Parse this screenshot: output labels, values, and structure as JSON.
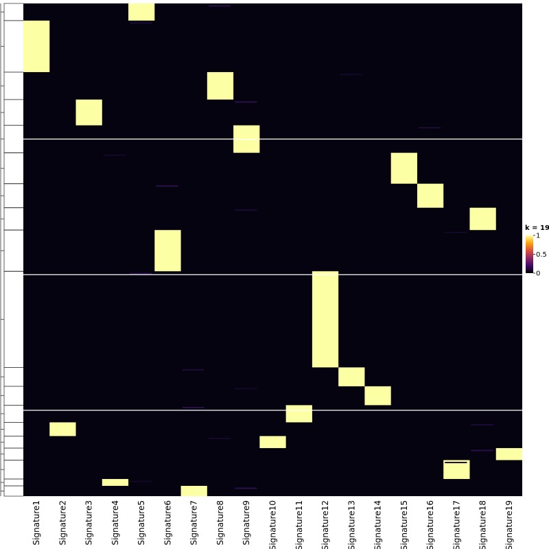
{
  "chart_data": {
    "type": "heatmap",
    "columns": [
      "Signature1",
      "Signature2",
      "Signature3",
      "Signature4",
      "Signature5",
      "Signature6",
      "Signature7",
      "Signature8",
      "Signature9",
      "Signature10",
      "Signature11",
      "Signature12",
      "Signature13",
      "Signature14",
      "Signature15",
      "Signature16",
      "Signature17",
      "Signature18",
      "Signature19"
    ],
    "row_count": 287,
    "row_groups": 4,
    "high_value_blocks": [
      {
        "column": "Signature5",
        "rows": [
          0,
          10
        ],
        "value": 1
      },
      {
        "column": "Signature1",
        "rows": [
          10,
          40
        ],
        "value": 1
      },
      {
        "column": "Signature8",
        "rows": [
          40,
          56
        ],
        "value": 1
      },
      {
        "column": "Signature3",
        "rows": [
          56,
          71
        ],
        "value": 1
      },
      {
        "column": "Signature9",
        "rows": [
          71,
          87
        ],
        "value": 1
      },
      {
        "column": "Signature15",
        "rows": [
          87,
          105
        ],
        "value": 1
      },
      {
        "column": "Signature16",
        "rows": [
          105,
          119
        ],
        "value": 1
      },
      {
        "column": "Signature18",
        "rows": [
          119,
          132
        ],
        "value": 1
      },
      {
        "column": "Signature6",
        "rows": [
          132,
          156
        ],
        "value": 1
      },
      {
        "column": "Signature12",
        "rows": [
          156,
          212
        ],
        "value": 1
      },
      {
        "column": "Signature13",
        "rows": [
          212,
          223
        ],
        "value": 1
      },
      {
        "column": "Signature14",
        "rows": [
          223,
          234
        ],
        "value": 1
      },
      {
        "column": "Signature11",
        "rows": [
          234,
          244
        ],
        "value": 1
      },
      {
        "column": "Signature2",
        "rows": [
          244,
          252
        ],
        "value": 1
      },
      {
        "column": "Signature10",
        "rows": [
          252,
          259
        ],
        "value": 1
      },
      {
        "column": "Signature19",
        "rows": [
          259,
          266
        ],
        "value": 1
      },
      {
        "column": "Signature17",
        "rows": [
          266,
          277
        ],
        "value": 1
      },
      {
        "column": "Signature4",
        "rows": [
          277,
          281
        ],
        "value": 1
      },
      {
        "column": "Signature7",
        "rows": [
          281,
          287
        ],
        "value": 1
      }
    ],
    "group_breaks_after_row": [
      79,
      158,
      237
    ],
    "value_range": [
      0,
      1
    ],
    "colormap": [
      "#000004",
      "#420a68",
      "#932667",
      "#dd513a",
      "#fca50a",
      "#fcffa4"
    ],
    "background_value_color": "#05030f",
    "legend": {
      "title": "k = 19",
      "ticks": [
        "0",
        "0.5",
        "1"
      ],
      "placement": "right"
    },
    "row_dendrogram": true
  }
}
